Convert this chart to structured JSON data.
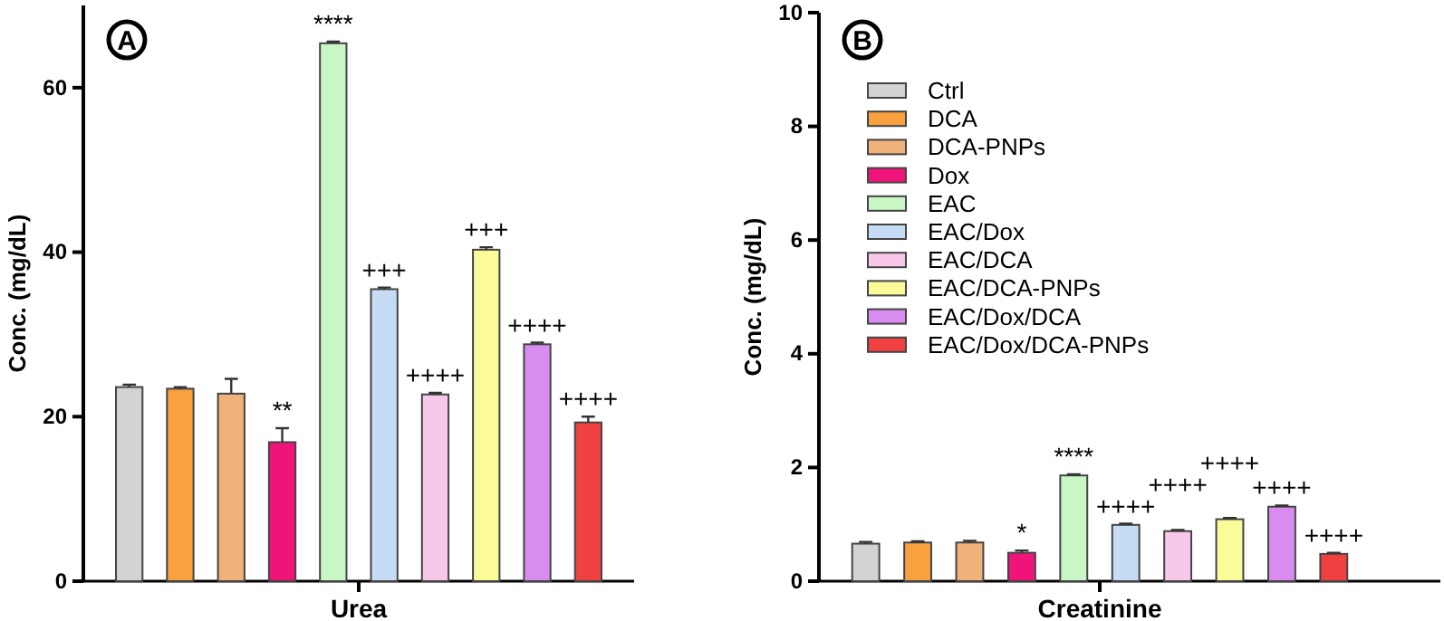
{
  "chart_data": [
    {
      "type": "bar",
      "title": "A",
      "categories": [
        "Urea"
      ],
      "ylabel": "Conc. (mg/dL)",
      "ylim": [
        0,
        70
      ],
      "yticks": [
        0,
        20,
        40,
        60
      ],
      "legend": false,
      "series": [
        {
          "color": "#d3d3d3",
          "values": [
            23.6
          ],
          "errors": [
            0.3
          ]
        },
        {
          "color": "#f9a03f",
          "values": [
            23.4
          ],
          "errors": [
            0.2
          ]
        },
        {
          "color": "#f0b27a",
          "values": [
            22.8
          ],
          "errors": [
            1.8
          ]
        },
        {
          "color": "#f0147a",
          "values": [
            16.9
          ],
          "errors": [
            1.7
          ],
          "value_labels": [
            "**"
          ]
        },
        {
          "color": "#c8f7c5",
          "values": [
            65.4
          ],
          "errors": [
            0.2
          ],
          "value_labels": [
            "****"
          ]
        },
        {
          "color": "#c6dcf5",
          "values": [
            35.5
          ],
          "errors": [
            0.2
          ],
          "value_labels": [
            "+++"
          ]
        },
        {
          "color": "#f7c8ea",
          "values": [
            22.7
          ],
          "errors": [
            0.2
          ],
          "value_labels": [
            "++++"
          ]
        },
        {
          "color": "#fbfb9a",
          "values": [
            40.3
          ],
          "errors": [
            0.3
          ],
          "value_labels": [
            "+++"
          ]
        },
        {
          "color": "#d98cf0",
          "values": [
            28.8
          ],
          "errors": [
            0.2
          ],
          "value_labels": [
            "++++"
          ]
        },
        {
          "color": "#f04040",
          "values": [
            19.3
          ],
          "errors": [
            0.7
          ],
          "value_labels": [
            "++++"
          ]
        }
      ]
    },
    {
      "type": "bar",
      "title": "B",
      "categories": [
        "Creatinine"
      ],
      "ylabel": "Conc. (mg/dL)",
      "ylim": [
        0,
        10
      ],
      "yticks": [
        0,
        2,
        4,
        6,
        8,
        10
      ],
      "legend": "top left",
      "series": [
        {
          "name": "Ctrl",
          "color": "#d3d3d3",
          "values": [
            0.66
          ],
          "errors": [
            0.03
          ]
        },
        {
          "name": "DCA",
          "color": "#f9a03f",
          "values": [
            0.68
          ],
          "errors": [
            0.02
          ]
        },
        {
          "name": "DCA-PNPs",
          "color": "#f0b27a",
          "values": [
            0.68
          ],
          "errors": [
            0.03
          ]
        },
        {
          "name": "Dox",
          "color": "#f0147a",
          "values": [
            0.5
          ],
          "errors": [
            0.04
          ],
          "value_labels": [
            "*"
          ]
        },
        {
          "name": "EAC",
          "color": "#c8f7c5",
          "values": [
            1.86
          ],
          "errors": [
            0.02
          ],
          "value_labels": [
            "****"
          ]
        },
        {
          "name": "EAC/Dox",
          "color": "#c6dcf5",
          "values": [
            0.99
          ],
          "errors": [
            0.02
          ],
          "value_labels": [
            "++++"
          ]
        },
        {
          "name": "EAC/DCA",
          "color": "#f7c8ea",
          "values": [
            0.88
          ],
          "errors": [
            0.02
          ],
          "value_labels": [
            "++++"
          ]
        },
        {
          "name": "EAC/DCA-PNPs",
          "color": "#fbfb9a",
          "values": [
            1.09
          ],
          "errors": [
            0.02
          ],
          "value_labels": [
            "++++"
          ]
        },
        {
          "name": "EAC/Dox/DCA",
          "color": "#d98cf0",
          "values": [
            1.31
          ],
          "errors": [
            0.02
          ],
          "value_labels": [
            "++++"
          ]
        },
        {
          "name": "EAC/Dox/DCA-PNPs",
          "color": "#f04040",
          "values": [
            0.48
          ],
          "errors": [
            0.02
          ],
          "value_labels": [
            "++++"
          ]
        }
      ]
    }
  ]
}
